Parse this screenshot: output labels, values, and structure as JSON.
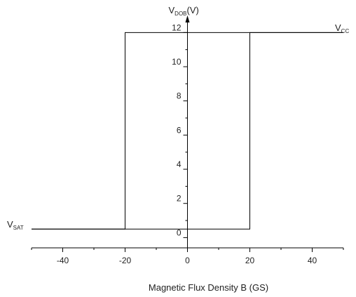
{
  "chart_data": {
    "type": "line",
    "xlabel": "Magnetic Flux Density B (GS)",
    "ylabel": {
      "main": "V",
      "sub": "DOB",
      "suffix": "(V)"
    },
    "xlim": [
      -50,
      50
    ],
    "ylim": [
      -0.6,
      13
    ],
    "x_ticks": [
      "-40",
      "-20",
      "0",
      "20",
      "40"
    ],
    "x_tick_values": [
      -40,
      -20,
      0,
      20,
      40
    ],
    "y_ticks": [
      "0",
      "2",
      "4",
      "6",
      "8",
      "10",
      "12"
    ],
    "y_tick_values": [
      0,
      2,
      4,
      6,
      8,
      10,
      12
    ],
    "y_minor_tick_values": [
      1,
      3,
      5,
      7,
      9,
      11
    ],
    "v_high": 12,
    "v_low": 0.5,
    "switch_points": [
      -20,
      20
    ],
    "series": [
      {
        "x": [
          -50,
          -20,
          -20,
          50
        ],
        "y": [
          0.5,
          0.5,
          12,
          12
        ]
      },
      {
        "x": [
          50,
          20,
          20,
          -50
        ],
        "y": [
          12,
          12,
          0.5,
          0.5
        ]
      }
    ],
    "annotations": [
      {
        "main": "V",
        "sub": "CC",
        "x": 48,
        "y": 12.7
      },
      {
        "main": "V",
        "sub": "SAT",
        "x": -50,
        "y": 0.5
      }
    ],
    "grid": false,
    "legend": "none"
  }
}
